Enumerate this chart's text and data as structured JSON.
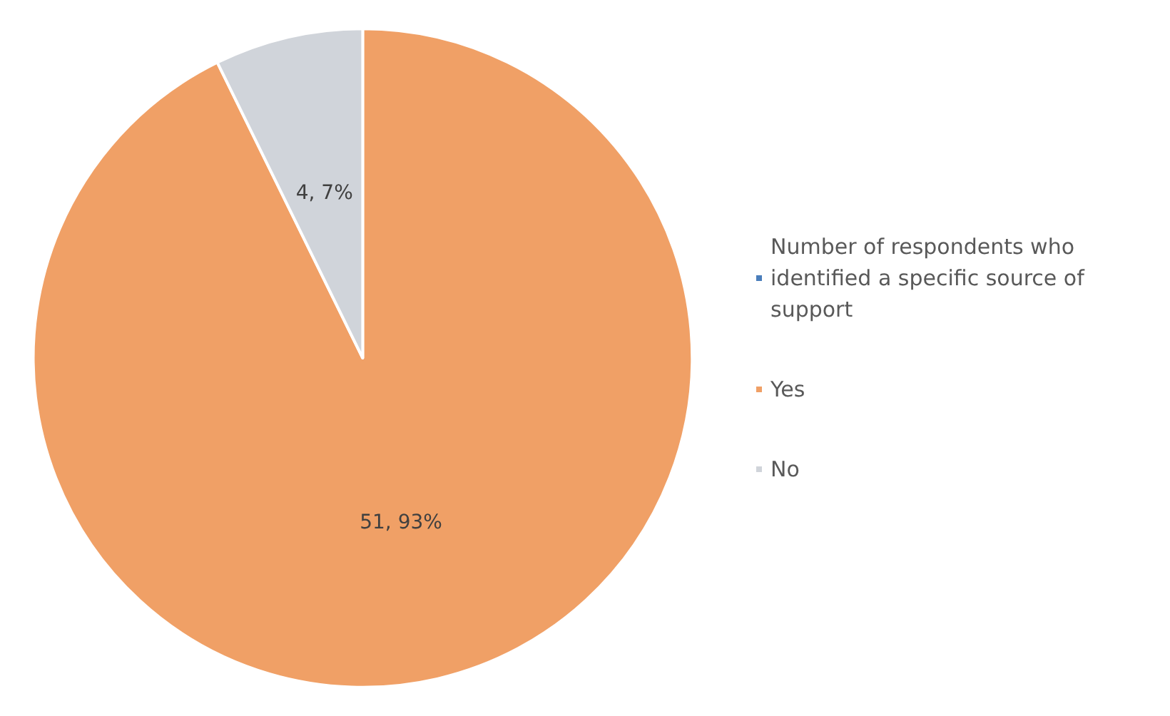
{
  "chart_data": {
    "type": "pie",
    "categories": [
      "Number of respondents who identified a specific source of support",
      "Yes",
      "No"
    ],
    "values": [
      0,
      51,
      4
    ],
    "colors": [
      "#4a7ebb",
      "#f0a066",
      "#d0d4da"
    ],
    "value_labels": [
      null,
      "51, 93%",
      "4, 7%"
    ],
    "legend": "right"
  }
}
